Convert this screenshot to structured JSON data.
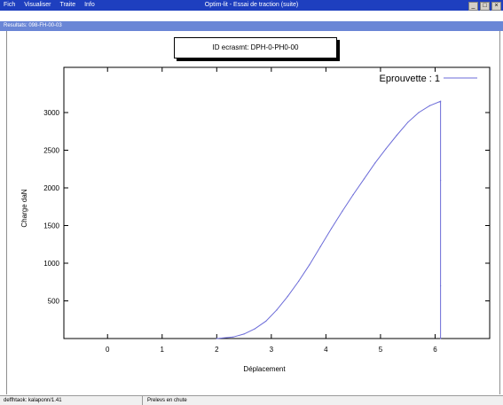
{
  "window": {
    "title": "Optim-lit - Essai de traction (suite)",
    "menu": [
      "Fich",
      "Visualiser",
      "Traite",
      "Info"
    ]
  },
  "subtitle": "Resultats: 098-FH-00-03",
  "specimen": {
    "label": "ID ecrasmt: DPH-0-PH0-00"
  },
  "statusbar": {
    "left": "deffhtaok: kalaponn/1.41",
    "right": "Prelevs en chute"
  },
  "chart_data": {
    "type": "line",
    "title": "",
    "xlabel": "Déplacement",
    "ylabel": "Charge daN",
    "xlim": [
      -0.8,
      7
    ],
    "ylim": [
      0,
      3600
    ],
    "xticks": [
      0,
      1,
      2,
      3,
      4,
      5,
      6
    ],
    "yticks": [
      500,
      1000,
      1500,
      2000,
      2500,
      3000
    ],
    "grid": false,
    "legend": "top-right",
    "series": [
      {
        "name": "Eprouvette : 1",
        "color": "#6b6bd8",
        "x": [
          2.0,
          2.3,
          2.5,
          2.7,
          2.9,
          3.1,
          3.3,
          3.5,
          3.7,
          3.9,
          4.1,
          4.3,
          4.5,
          4.7,
          4.9,
          5.1,
          5.3,
          5.5,
          5.7,
          5.9,
          6.1,
          6.1,
          6.1,
          6.1
        ],
        "y": [
          0,
          20,
          60,
          130,
          230,
          380,
          560,
          760,
          980,
          1220,
          1460,
          1690,
          1910,
          2120,
          2330,
          2520,
          2700,
          2870,
          3000,
          3090,
          3150,
          2100,
          700,
          0
        ]
      }
    ]
  }
}
